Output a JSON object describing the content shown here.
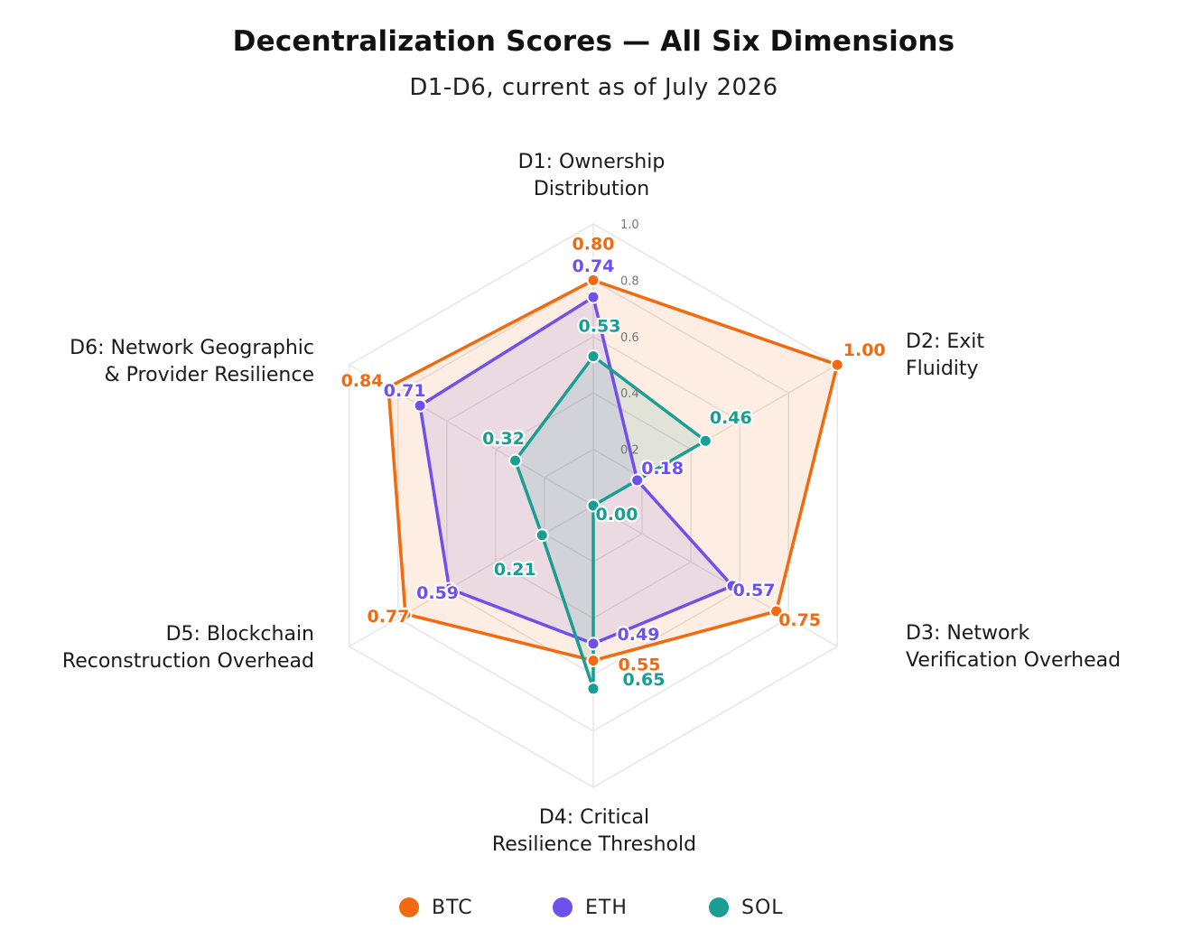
{
  "title": "Decentralization Scores — All Six Dimensions",
  "subtitle": "D1-D6, current as of July 2026",
  "chart_data": {
    "type": "radar",
    "title": "Decentralization Scores — All Six Dimensions",
    "subtitle": "D1-D6, current as of July 2026",
    "axes": [
      "D1: Ownership\nDistribution",
      "D2: Exit\nFluidity",
      "D3: Network\nVerification Overhead",
      "D4: Critical\nResilience Threshold",
      "D5: Blockchain\nReconstruction Overhead",
      "D6: Network Geographic\n& Provider Resilience"
    ],
    "radial_range": [
      0,
      1.0
    ],
    "radial_ticks": [
      "0.2",
      "0.4",
      "0.6",
      "0.8",
      "1.0"
    ],
    "grid": true,
    "legend_position": "bottom",
    "series": [
      {
        "name": "BTC",
        "color": "#f26a10",
        "values": [
          0.8,
          1.0,
          0.75,
          0.55,
          0.77,
          0.84
        ],
        "labels": [
          "0.80",
          "1.00",
          "0.75",
          "0.55",
          "0.77",
          "0.84"
        ]
      },
      {
        "name": "ETH",
        "color": "#7050ec",
        "values": [
          0.74,
          0.18,
          0.57,
          0.49,
          0.59,
          0.71
        ],
        "labels": [
          "0.74",
          "0.18",
          "0.57",
          "0.49",
          "0.59",
          "0.71"
        ]
      },
      {
        "name": "SOL",
        "color": "#189e92",
        "values": [
          0.53,
          0.46,
          0.0,
          0.65,
          0.21,
          0.32
        ],
        "labels": [
          "0.53",
          "0.46",
          "0.00",
          "0.65",
          "0.21",
          "0.32"
        ]
      }
    ]
  }
}
